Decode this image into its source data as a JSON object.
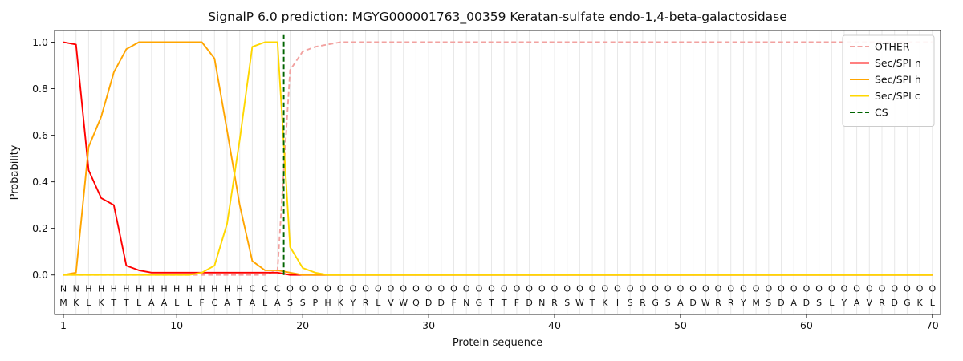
{
  "chart_data": {
    "type": "line",
    "title": "SignalP 6.0 prediction: MGYG000001763_00359 Keratan-sulfate endo-1,4-beta-galactosidase",
    "xlabel": "Protein sequence",
    "ylabel": "Probability",
    "x_ticks": [
      1,
      10,
      20,
      30,
      40,
      50,
      60,
      70
    ],
    "y_ticks": [
      "0.0",
      "0.2",
      "0.4",
      "0.6",
      "0.8",
      "1.0"
    ],
    "ylim": [
      0.0,
      1.0
    ],
    "grid": "vertical-line-per-residue",
    "legend_position": "upper-right",
    "sequence": "MKLKTTLAALLFCATALASSPHKYRLVWQDDFNGTTFDNRSWTKISRGSADWRRYMSDADSLYAVRDGKL",
    "region_labels": "NNHHHHHHHHHHHHHCCCOOOOOOOOOOOOOOOOOOOOOOOOOOOOOOOOOOOOOOOOOOOOOOOOOOOO",
    "region_colors": {
      "N": "#ff0000",
      "H": "#ffa500",
      "C": "#ffd700",
      "O": "#b3b3b3"
    },
    "residue_color": "#1a1a1a",
    "series": [
      {
        "name": "OTHER",
        "color": "#f2a2a0",
        "dash": true,
        "values": [
          0.0,
          0.0,
          0.0,
          0.0,
          0.0,
          0.0,
          0.0,
          0.0,
          0.0,
          0.0,
          0.0,
          0.0,
          0.0,
          0.0,
          0.0,
          0.0,
          0.0,
          0.02,
          0.88,
          0.96,
          0.98,
          0.99,
          1.0,
          1.0,
          1.0,
          1.0,
          1.0,
          1.0,
          1.0,
          1.0,
          1.0,
          1.0,
          1.0,
          1.0,
          1.0,
          1.0,
          1.0,
          1.0,
          1.0,
          1.0,
          1.0,
          1.0,
          1.0,
          1.0,
          1.0,
          1.0,
          1.0,
          1.0,
          1.0,
          1.0,
          1.0,
          1.0,
          1.0,
          1.0,
          1.0,
          1.0,
          1.0,
          1.0,
          1.0,
          1.0,
          1.0,
          1.0,
          1.0,
          1.0,
          1.0,
          1.0,
          1.0,
          1.0,
          1.0,
          1.0
        ]
      },
      {
        "name": "Sec/SPI n",
        "color": "#ff0000",
        "dash": false,
        "values": [
          1.0,
          0.99,
          0.45,
          0.33,
          0.3,
          0.04,
          0.02,
          0.01,
          0.01,
          0.01,
          0.01,
          0.01,
          0.01,
          0.01,
          0.01,
          0.01,
          0.01,
          0.01,
          0.0,
          0.0,
          0.0,
          0.0,
          0.0,
          0.0,
          0.0,
          0.0,
          0.0,
          0.0,
          0.0,
          0.0,
          0.0,
          0.0,
          0.0,
          0.0,
          0.0,
          0.0,
          0.0,
          0.0,
          0.0,
          0.0,
          0.0,
          0.0,
          0.0,
          0.0,
          0.0,
          0.0,
          0.0,
          0.0,
          0.0,
          0.0,
          0.0,
          0.0,
          0.0,
          0.0,
          0.0,
          0.0,
          0.0,
          0.0,
          0.0,
          0.0,
          0.0,
          0.0,
          0.0,
          0.0,
          0.0,
          0.0,
          0.0,
          0.0,
          0.0,
          0.0
        ]
      },
      {
        "name": "Sec/SPI h",
        "color": "#ffa500",
        "dash": false,
        "values": [
          0.0,
          0.01,
          0.55,
          0.68,
          0.87,
          0.97,
          1.0,
          1.0,
          1.0,
          1.0,
          1.0,
          1.0,
          0.93,
          0.62,
          0.3,
          0.06,
          0.02,
          0.02,
          0.01,
          0.0,
          0.0,
          0.0,
          0.0,
          0.0,
          0.0,
          0.0,
          0.0,
          0.0,
          0.0,
          0.0,
          0.0,
          0.0,
          0.0,
          0.0,
          0.0,
          0.0,
          0.0,
          0.0,
          0.0,
          0.0,
          0.0,
          0.0,
          0.0,
          0.0,
          0.0,
          0.0,
          0.0,
          0.0,
          0.0,
          0.0,
          0.0,
          0.0,
          0.0,
          0.0,
          0.0,
          0.0,
          0.0,
          0.0,
          0.0,
          0.0,
          0.0,
          0.0,
          0.0,
          0.0,
          0.0,
          0.0,
          0.0,
          0.0,
          0.0,
          0.0
        ]
      },
      {
        "name": "Sec/SPI c",
        "color": "#ffd700",
        "dash": false,
        "values": [
          0.0,
          0.0,
          0.0,
          0.0,
          0.0,
          0.0,
          0.0,
          0.0,
          0.0,
          0.0,
          0.0,
          0.01,
          0.04,
          0.22,
          0.58,
          0.98,
          1.0,
          1.0,
          0.12,
          0.03,
          0.01,
          0.0,
          0.0,
          0.0,
          0.0,
          0.0,
          0.0,
          0.0,
          0.0,
          0.0,
          0.0,
          0.0,
          0.0,
          0.0,
          0.0,
          0.0,
          0.0,
          0.0,
          0.0,
          0.0,
          0.0,
          0.0,
          0.0,
          0.0,
          0.0,
          0.0,
          0.0,
          0.0,
          0.0,
          0.0,
          0.0,
          0.0,
          0.0,
          0.0,
          0.0,
          0.0,
          0.0,
          0.0,
          0.0,
          0.0,
          0.0,
          0.0,
          0.0,
          0.0,
          0.0,
          0.0,
          0.0,
          0.0,
          0.0,
          0.0
        ]
      }
    ],
    "cs": {
      "name": "CS",
      "color": "#006400",
      "dash": true,
      "between": [
        18,
        19
      ]
    },
    "style": {
      "grid_color": "#e8e8e8",
      "spine_color": "#262626",
      "background": "#ffffff",
      "legend_border": "#cccccc"
    }
  }
}
